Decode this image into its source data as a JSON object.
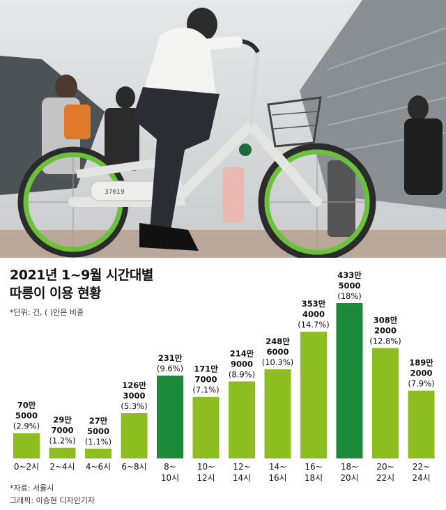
{
  "title_line1": "2021년 1~9월 시간대별",
  "title_line2": "따릉이 이용 현황",
  "unit_note": "*단위: 건, ( )안은 비중",
  "source_note": "*자료: 서울시",
  "credit_note": "그래픽: 이승현 디자인기자",
  "photo": {
    "description_icon": "bicycle-photo",
    "bike_number": "37619"
  },
  "colors": {
    "light_bar": "#8dbd1f",
    "dark_bar": "#1d8a3a",
    "photo_sky": "#d9dcde"
  },
  "chart_data": {
    "type": "bar",
    "title": "2021년 1~9월 시간대별 따릉이 이용 현황",
    "categories": [
      "0~2시",
      "2~4시",
      "4~6시",
      "6~8시",
      "8~10시",
      "10~12시",
      "12~14시",
      "14~16시",
      "16~18시",
      "18~20시",
      "20~22시",
      "22~24시"
    ],
    "x_tick_lines": [
      [
        "0~2시"
      ],
      [
        "2~4시"
      ],
      [
        "4~6시"
      ],
      [
        "6~8시"
      ],
      [
        "8~",
        "10시"
      ],
      [
        "10~",
        "12시"
      ],
      [
        "12~",
        "14시"
      ],
      [
        "14~",
        "16시"
      ],
      [
        "16~",
        "18시"
      ],
      [
        "18~",
        "20시"
      ],
      [
        "20~",
        "22시"
      ],
      [
        "22~",
        "24시"
      ]
    ],
    "values": [
      705000,
      297000,
      275000,
      1263000,
      2310000,
      1717000,
      2149000,
      2486000,
      3534000,
      4335000,
      3082000,
      1892000
    ],
    "value_labels": [
      [
        "70만",
        "5000"
      ],
      [
        "29만",
        "7000"
      ],
      [
        "27만",
        "5000"
      ],
      [
        "126만",
        "3000"
      ],
      [
        "231만",
        ""
      ],
      [
        "171만",
        "7000"
      ],
      [
        "214만",
        "9000"
      ],
      [
        "248만",
        "6000"
      ],
      [
        "353만",
        "4000"
      ],
      [
        "433만",
        "5000"
      ],
      [
        "308만",
        "2000"
      ],
      [
        "189만",
        "2000"
      ]
    ],
    "shares": [
      "(2.9%)",
      "(1.2%)",
      "(1.1%)",
      "(5.3%)",
      "(9.6%)",
      "(7.1%)",
      "(8.9%)",
      "(10.3%)",
      "(14.7%)",
      "(18%)",
      "(12.8%)",
      "(7.9%)"
    ],
    "highlighted": [
      false,
      false,
      false,
      false,
      true,
      false,
      false,
      false,
      false,
      true,
      false,
      false
    ],
    "ylim": [
      0,
      4335000
    ],
    "grid": false,
    "legend": "none"
  }
}
